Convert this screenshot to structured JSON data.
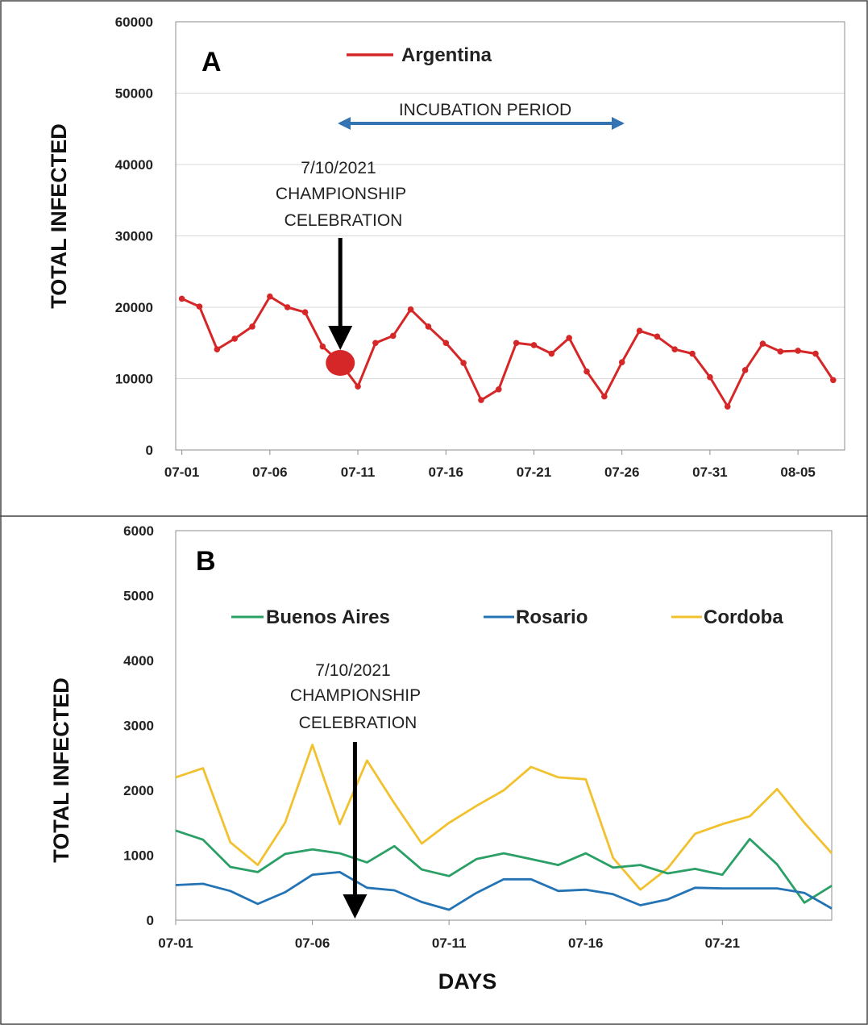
{
  "chart_data": [
    {
      "type": "line",
      "panel_label": "A",
      "ylabel": "TOTAL INFECTED",
      "xlabel": "",
      "ylim": [
        0,
        60000
      ],
      "yticks": [
        0,
        10000,
        20000,
        30000,
        40000,
        50000,
        60000
      ],
      "xtick_labels": [
        "07-01",
        "07-06",
        "07-11",
        "07-16",
        "07-21",
        "07-26",
        "07-31",
        "08-05"
      ],
      "grid": true,
      "legend": "top-center",
      "colors": {
        "Argentina": "#d62728"
      },
      "series": [
        {
          "name": "Argentina",
          "markers": true,
          "x": [
            "07-01",
            "07-02",
            "07-03",
            "07-04",
            "07-05",
            "07-06",
            "07-07",
            "07-08",
            "07-09",
            "07-10",
            "07-11",
            "07-12",
            "07-13",
            "07-14",
            "07-15",
            "07-16",
            "07-17",
            "07-18",
            "07-19",
            "07-20",
            "07-21",
            "07-22",
            "07-23",
            "07-24",
            "07-25",
            "07-26",
            "07-27",
            "07-28",
            "07-29",
            "07-30",
            "07-31",
            "08-01",
            "08-02",
            "08-03",
            "08-04",
            "08-05",
            "08-06",
            "08-07"
          ],
          "values": [
            21200,
            20100,
            14100,
            15600,
            17300,
            21500,
            20000,
            19300,
            14500,
            12200,
            8900,
            15000,
            16000,
            19700,
            17300,
            15000,
            12200,
            7000,
            8500,
            15000,
            14700,
            13500,
            15700,
            11000,
            7500,
            12300,
            16700,
            15900,
            14100,
            13500,
            10200,
            6100,
            11200,
            14900,
            13800,
            13900,
            13500,
            9800
          ]
        }
      ],
      "annotations": [
        {
          "lines": [
            "7/10/2021",
            "CHAMPIONSHIP",
            "CELEBRATION"
          ],
          "x": "07-10",
          "marker_value": 12200
        },
        {
          "text": "INCUBATION PERIOD",
          "x_start": "07-10",
          "x_end": "07-26"
        }
      ]
    },
    {
      "type": "line",
      "panel_label": "B",
      "ylabel": "TOTAL INFECTED",
      "xlabel": "DAYS",
      "ylim": [
        0,
        6000
      ],
      "yticks": [
        0,
        1000,
        2000,
        3000,
        4000,
        5000,
        6000
      ],
      "xtick_labels": [
        "07-01",
        "07-06",
        "07-11",
        "07-16",
        "07-21"
      ],
      "grid": false,
      "legend": "upper",
      "colors": {
        "Buenos Aires": "#2aa066",
        "Rosario": "#2474b5",
        "Cordoba": "#f2c12e"
      },
      "x": [
        "07-01",
        "07-02",
        "07-03",
        "07-04",
        "07-05",
        "07-06",
        "07-07",
        "07-08",
        "07-09",
        "07-10",
        "07-11",
        "07-12",
        "07-13",
        "07-14",
        "07-15",
        "07-16",
        "07-17",
        "07-18",
        "07-19",
        "07-20",
        "07-21",
        "07-22",
        "07-23",
        "07-24",
        "07-25"
      ],
      "series": [
        {
          "name": "Buenos Aires",
          "values": [
            1380,
            1240,
            820,
            740,
            1020,
            1090,
            1030,
            890,
            1140,
            780,
            680,
            940,
            1030,
            940,
            850,
            1030,
            810,
            850,
            720,
            790,
            700,
            1250,
            860,
            270,
            530
          ]
        },
        {
          "name": "Rosario",
          "values": [
            540,
            560,
            450,
            250,
            430,
            700,
            740,
            500,
            460,
            280,
            160,
            420,
            630,
            630,
            450,
            470,
            400,
            230,
            320,
            500,
            490,
            490,
            490,
            420,
            180
          ]
        },
        {
          "name": "Cordoba",
          "values": [
            2200,
            2340,
            1200,
            850,
            1500,
            2700,
            1480,
            2460,
            1800,
            1180,
            1500,
            1760,
            2000,
            2360,
            2200,
            2170,
            960,
            470,
            800,
            1330,
            1480,
            1600,
            2020,
            1500,
            1030
          ]
        }
      ],
      "annotations": [
        {
          "lines": [
            "7/10/2021",
            "CHAMPIONSHIP",
            "CELEBRATION"
          ],
          "x": "07-08"
        }
      ]
    }
  ]
}
